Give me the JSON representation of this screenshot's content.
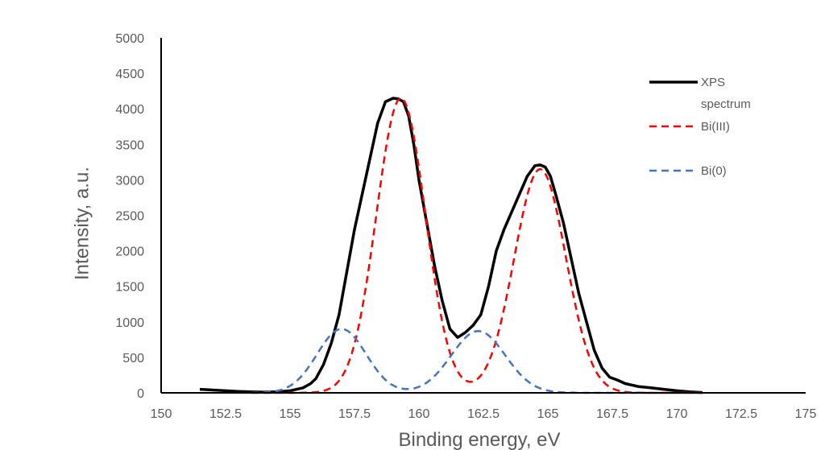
{
  "chart_data": {
    "type": "line",
    "title": "",
    "xlabel": "Binding energy, eV",
    "ylabel": "Intensity, a.u.",
    "xlim": [
      150,
      175
    ],
    "ylim": [
      0,
      5000
    ],
    "x_ticks": [
      "150",
      "152.5",
      "155",
      "157.5",
      "160",
      "162.5",
      "165",
      "167.5",
      "170",
      "172.5",
      "175"
    ],
    "y_ticks": [
      "0",
      "500",
      "1000",
      "1500",
      "2000",
      "2500",
      "3000",
      "3500",
      "4000",
      "4500",
      "5000"
    ],
    "grid": false,
    "legend_position": "top-right",
    "legend": [
      "XPS spectrum",
      "Bi(III)",
      "Bi(0)"
    ],
    "series": [
      {
        "name": "XPS spectrum",
        "color": "#000000",
        "style": "solid",
        "x": [
          151.5,
          152.0,
          152.5,
          153.0,
          153.5,
          154.0,
          154.5,
          155.0,
          155.5,
          155.8,
          156.0,
          156.3,
          156.6,
          156.9,
          157.2,
          157.5,
          157.8,
          158.1,
          158.4,
          158.7,
          159.0,
          159.2,
          159.4,
          159.6,
          159.8,
          160.0,
          160.3,
          160.6,
          160.9,
          161.2,
          161.5,
          161.8,
          162.1,
          162.4,
          162.7,
          163.0,
          163.3,
          163.6,
          163.9,
          164.2,
          164.5,
          164.7,
          164.9,
          165.1,
          165.3,
          165.6,
          165.9,
          166.2,
          166.5,
          166.8,
          167.1,
          167.4,
          167.7,
          168.0,
          168.5,
          169.0,
          169.5,
          170.0,
          170.5,
          171.0
        ],
        "y": [
          50,
          40,
          30,
          20,
          15,
          10,
          15,
          30,
          70,
          130,
          200,
          400,
          700,
          1100,
          1700,
          2300,
          2800,
          3300,
          3800,
          4100,
          4150,
          4140,
          4100,
          3900,
          3500,
          3000,
          2400,
          1800,
          1300,
          900,
          780,
          850,
          950,
          1100,
          1500,
          2000,
          2300,
          2550,
          2800,
          3050,
          3200,
          3210,
          3180,
          3050,
          2800,
          2400,
          1900,
          1400,
          1000,
          600,
          350,
          220,
          180,
          130,
          90,
          70,
          50,
          30,
          15,
          5
        ]
      },
      {
        "name": "Bi(III)",
        "color": "#ff0000",
        "style": "dashed",
        "peaks": [
          {
            "center": 159.3,
            "height": 4150,
            "sigma": 0.95
          },
          {
            "center": 164.7,
            "height": 3150,
            "sigma": 1.0
          }
        ]
      },
      {
        "name": "Bi(0)",
        "color": "#4472c4",
        "style": "dashed",
        "peaks": [
          {
            "center": 157.0,
            "height": 900,
            "sigma": 0.95
          },
          {
            "center": 162.3,
            "height": 870,
            "sigma": 1.05
          }
        ]
      }
    ]
  }
}
